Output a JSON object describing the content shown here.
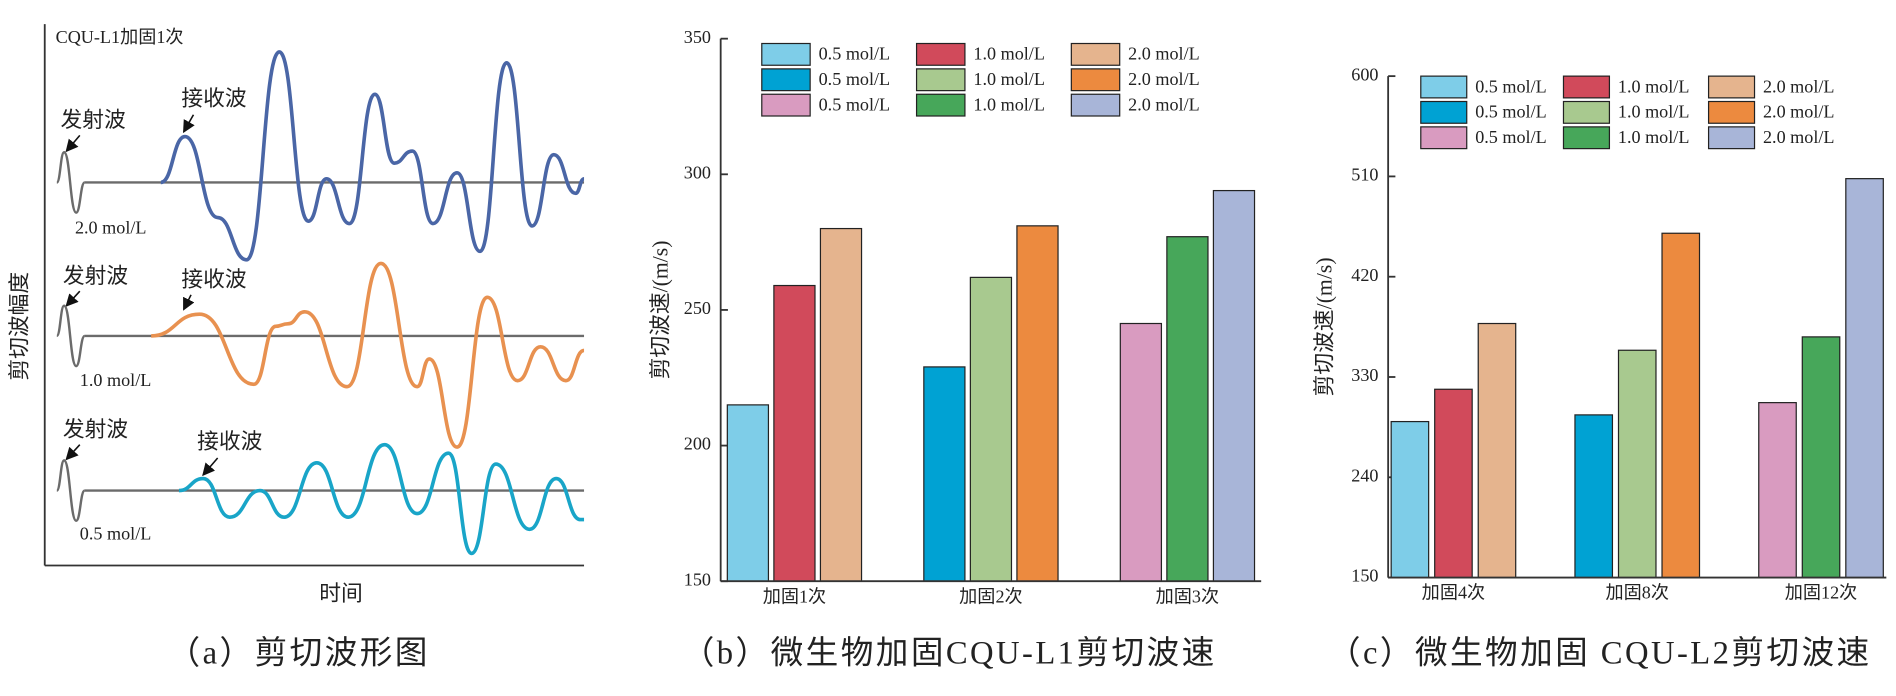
{
  "waveform": {
    "inner_title": "CQU-L1加固1次",
    "y_label": "剪切波幅度",
    "x_label": "时间",
    "caption": "（a）剪切波形图",
    "traces": [
      {
        "emit": "发射波",
        "receive": "接收波",
        "label": "2.0 mol/L"
      },
      {
        "emit": "发射波",
        "receive": "接收波",
        "label": "1.0 mol/L"
      },
      {
        "emit": "发射波",
        "receive": "接收波",
        "label": "0.5 mol/L"
      }
    ]
  },
  "chart_data": [
    {
      "type": "bar",
      "caption": "（b）微生物加固CQU-L1剪切波速",
      "y_label": "剪切波速/(m/s)",
      "categories": [
        "加固1次",
        "加固2次",
        "加固3次"
      ],
      "ylim": [
        150,
        350
      ],
      "yticks": [
        150,
        200,
        250,
        300,
        350
      ],
      "series": [
        {
          "name": "0.5 mol/L",
          "color": "#7ecde8",
          "values": [
            215,
            null,
            null
          ]
        },
        {
          "name": "1.0 mol/L",
          "color": "#d14a5b",
          "values": [
            259,
            null,
            null
          ]
        },
        {
          "name": "2.0 mol/L",
          "color": "#e5b48e",
          "values": [
            280,
            null,
            null
          ]
        },
        {
          "name": "0.5 mol/L",
          "color": "#00a2d3",
          "values": [
            null,
            229,
            null
          ]
        },
        {
          "name": "1.0 mol/L",
          "color": "#a8c98f",
          "values": [
            null,
            262,
            null
          ]
        },
        {
          "name": "2.0 mol/L",
          "color": "#ec8a3f",
          "values": [
            null,
            281,
            null
          ]
        },
        {
          "name": "0.5 mol/L",
          "color": "#d99bc0",
          "values": [
            null,
            null,
            245
          ]
        },
        {
          "name": "1.0 mol/L",
          "color": "#47a75a",
          "values": [
            null,
            null,
            277
          ]
        },
        {
          "name": "2.0 mol/L",
          "color": "#a8b5d8",
          "values": [
            null,
            null,
            294
          ]
        }
      ]
    },
    {
      "type": "bar",
      "caption": "（c）微生物加固 CQU-L2剪切波速",
      "y_label": "剪切波速/(m/s)",
      "categories": [
        "加固4次",
        "加固8次",
        "加固12次"
      ],
      "ylim": [
        150,
        600
      ],
      "yticks": [
        150,
        240,
        330,
        420,
        510,
        600
      ],
      "series": [
        {
          "name": "0.5 mol/L",
          "color": "#7ecde8",
          "values": [
            290,
            null,
            null
          ]
        },
        {
          "name": "1.0 mol/L",
          "color": "#d14a5b",
          "values": [
            319,
            null,
            null
          ]
        },
        {
          "name": "2.0 mol/L",
          "color": "#e5b48e",
          "values": [
            378,
            null,
            null
          ]
        },
        {
          "name": "0.5 mol/L",
          "color": "#00a2d3",
          "values": [
            null,
            296,
            null
          ]
        },
        {
          "name": "1.0 mol/L",
          "color": "#a8c98f",
          "values": [
            null,
            354,
            null
          ]
        },
        {
          "name": "2.0 mol/L",
          "color": "#ec8a3f",
          "values": [
            null,
            459,
            null
          ]
        },
        {
          "name": "0.5 mol/L",
          "color": "#d99bc0",
          "values": [
            null,
            null,
            307
          ]
        },
        {
          "name": "1.0 mol/L",
          "color": "#47a75a",
          "values": [
            null,
            null,
            366
          ]
        },
        {
          "name": "2.0 mol/L",
          "color": "#a8b5d8",
          "values": [
            null,
            null,
            508
          ]
        }
      ]
    }
  ]
}
